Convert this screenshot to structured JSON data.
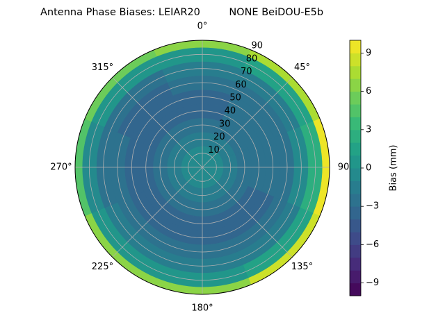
{
  "chart_data": {
    "type": "polar-contour",
    "title": "Antenna Phase Biases: LEIAR20         NONE BeiDOU-E5b",
    "azimuth": [
      0,
      45,
      90,
      135,
      180,
      225,
      270,
      315
    ],
    "zenith": [
      0,
      10,
      20,
      30,
      40,
      50,
      60,
      70,
      80,
      90
    ],
    "values": [
      [
        -0.5,
        -1,
        -2,
        -3,
        -3.5,
        -3.5,
        -3,
        -2,
        0,
        6
      ],
      [
        -0.5,
        -1,
        -2,
        -2.5,
        -3,
        -3,
        -2.5,
        -1.5,
        1,
        7
      ],
      [
        -0.5,
        -1,
        -1.5,
        -2.5,
        -3,
        -3,
        -2.5,
        -1,
        2,
        9
      ],
      [
        -0.5,
        -1,
        -2,
        -3,
        -3.5,
        -3.5,
        -3,
        -2,
        1,
        8
      ],
      [
        -0.5,
        -1,
        -2,
        -3,
        -3.5,
        -3.5,
        -3,
        -2,
        0,
        6
      ],
      [
        -0.5,
        -1,
        -2,
        -3,
        -3.5,
        -3.5,
        -3,
        -2,
        0,
        6
      ],
      [
        -0.5,
        -1,
        -2,
        -3,
        -3.5,
        -3.5,
        -3,
        -2.5,
        -1,
        4
      ],
      [
        -0.5,
        -1,
        -2,
        -3,
        -3.5,
        -4,
        -3.5,
        -2.5,
        0,
        5
      ]
    ],
    "rlim": [
      0,
      90
    ],
    "rticks": [
      10,
      20,
      30,
      40,
      50,
      60,
      70,
      80,
      90
    ],
    "angle_ticks": [
      {
        "value": 0,
        "label": "0°"
      },
      {
        "value": 45,
        "label": "45°"
      },
      {
        "value": 90,
        "label": "90"
      },
      {
        "value": 135,
        "label": "135°"
      },
      {
        "value": 180,
        "label": "180°"
      },
      {
        "value": 225,
        "label": "225°"
      },
      {
        "value": 270,
        "label": "270°"
      },
      {
        "value": 315,
        "label": "315°"
      }
    ],
    "colormap": "viridis",
    "clim": [
      -10,
      10
    ],
    "levels": 20,
    "colorbar_label": "Bias (mm)",
    "cticks": [
      {
        "value": -9,
        "label": "−9"
      },
      {
        "value": -6,
        "label": "−6"
      },
      {
        "value": -3,
        "label": "−3"
      },
      0,
      3,
      6,
      9
    ],
    "grid": true
  }
}
